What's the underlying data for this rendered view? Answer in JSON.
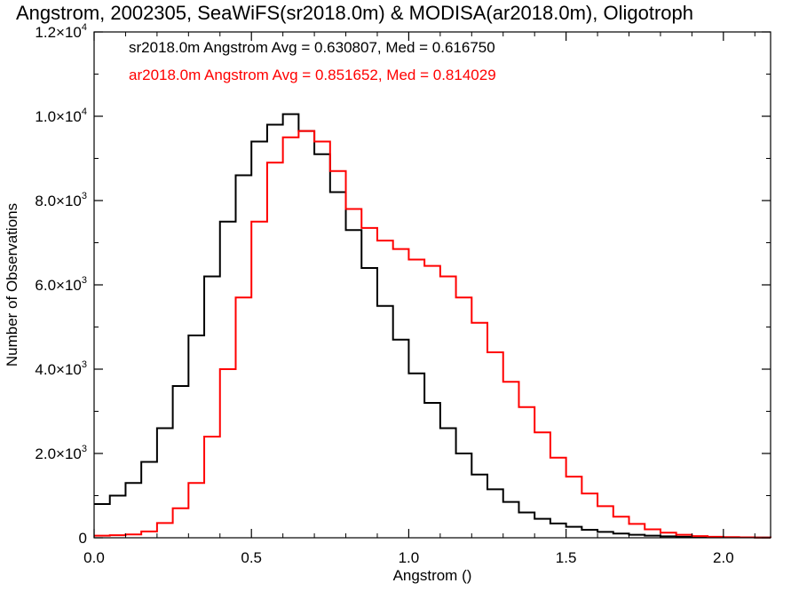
{
  "chart_data": {
    "type": "line",
    "step": true,
    "title": "Angstrom, 2002305, SeaWiFS(sr2018.0m) & MODISA(ar2018.0m), Oligotroph",
    "xlabel": "Angstrom ()",
    "ylabel": "Number of Observations",
    "xlim": [
      0.0,
      2.15
    ],
    "ylim": [
      0,
      12000
    ],
    "xticks": [
      {
        "value": 0.0,
        "label": "0.0"
      },
      {
        "value": 0.5,
        "label": "0.5"
      },
      {
        "value": 1.0,
        "label": "1.0"
      },
      {
        "value": 1.5,
        "label": "1.5"
      },
      {
        "value": 2.0,
        "label": "2.0"
      }
    ],
    "yticks": [
      {
        "value": 0,
        "base": "0",
        "exp": ""
      },
      {
        "value": 2000,
        "base": "2.0×10",
        "exp": "3"
      },
      {
        "value": 4000,
        "base": "4.0×10",
        "exp": "3"
      },
      {
        "value": 6000,
        "base": "6.0×10",
        "exp": "3"
      },
      {
        "value": 8000,
        "base": "8.0×10",
        "exp": "3"
      },
      {
        "value": 10000,
        "base": "1.0×10",
        "exp": "4"
      },
      {
        "value": 12000,
        "base": "1.2×10",
        "exp": "4"
      }
    ],
    "grid": false,
    "annotations": [
      {
        "id": "sr",
        "text": "sr2018.0m Angstrom Avg = 0.630807, Med = 0.616750",
        "color": "#000000"
      },
      {
        "id": "ar",
        "text": "ar2018.0m Angstrom Avg = 0.851652, Med = 0.814029",
        "color": "#ff0000"
      }
    ],
    "series": [
      {
        "color": "#000000",
        "x": [
          0.0,
          0.05,
          0.1,
          0.15,
          0.2,
          0.25,
          0.3,
          0.35,
          0.4,
          0.45,
          0.5,
          0.55,
          0.6,
          0.65,
          0.7,
          0.75,
          0.8,
          0.85,
          0.9,
          0.95,
          1.0,
          1.05,
          1.1,
          1.15,
          1.2,
          1.25,
          1.3,
          1.35,
          1.4,
          1.45,
          1.5,
          1.55,
          1.6,
          1.65,
          1.7,
          1.75,
          1.8,
          1.85,
          1.9,
          1.95,
          2.0,
          2.05,
          2.1,
          2.15
        ],
        "y": [
          800,
          1000,
          1300,
          1800,
          2600,
          3600,
          4800,
          6200,
          7500,
          8600,
          9400,
          9800,
          10050,
          9650,
          9100,
          8200,
          7300,
          6400,
          5500,
          4700,
          3900,
          3200,
          2600,
          2000,
          1500,
          1150,
          850,
          600,
          450,
          340,
          260,
          190,
          140,
          100,
          70,
          50,
          35,
          25,
          20,
          15,
          10,
          10,
          5,
          0
        ]
      },
      {
        "color": "#ff0000",
        "x": [
          0.0,
          0.05,
          0.1,
          0.15,
          0.2,
          0.25,
          0.3,
          0.35,
          0.4,
          0.45,
          0.5,
          0.55,
          0.6,
          0.65,
          0.7,
          0.75,
          0.8,
          0.85,
          0.9,
          0.95,
          1.0,
          1.05,
          1.1,
          1.15,
          1.2,
          1.25,
          1.3,
          1.35,
          1.4,
          1.45,
          1.5,
          1.55,
          1.6,
          1.65,
          1.7,
          1.75,
          1.8,
          1.85,
          1.9,
          1.95,
          2.0,
          2.05,
          2.1,
          2.15
        ],
        "y": [
          50,
          60,
          80,
          150,
          350,
          700,
          1300,
          2400,
          4000,
          5700,
          7500,
          8900,
          9500,
          9650,
          9400,
          8700,
          7800,
          7350,
          7050,
          6850,
          6600,
          6450,
          6200,
          5700,
          5100,
          4400,
          3700,
          3100,
          2500,
          1900,
          1450,
          1050,
          750,
          500,
          330,
          200,
          120,
          70,
          40,
          25,
          15,
          10,
          5,
          0
        ]
      }
    ]
  }
}
